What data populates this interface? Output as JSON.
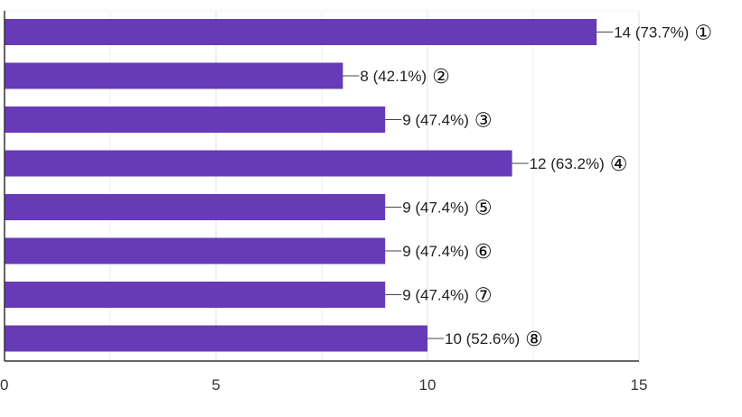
{
  "chart_data": {
    "type": "bar",
    "orientation": "horizontal",
    "categories": [
      "",
      "",
      "",
      "",
      "",
      "",
      "",
      ""
    ],
    "values": [
      14,
      8,
      9,
      12,
      9,
      9,
      9,
      10
    ],
    "data_labels": [
      "14 (73.7%)",
      "8 (42.1%)",
      "9 (47.4%)",
      "12 (63.2%)",
      "9 (47.4%)",
      "9 (47.4%)",
      "9 (47.4%)",
      "10 (52.6%)"
    ],
    "annotations": [
      "①",
      "②",
      "③",
      "④",
      "⑤",
      "⑥",
      "⑦",
      "⑧"
    ],
    "xlim": [
      0,
      15
    ],
    "x_ticks": [
      0,
      5,
      10,
      15
    ],
    "x_tick_labels": [
      "0",
      "5",
      "10",
      "15"
    ],
    "grid": true,
    "legend": "none",
    "bar_color": "#673ab7",
    "gridline_color": "#e6e6e6",
    "axis_color": "#333333"
  }
}
